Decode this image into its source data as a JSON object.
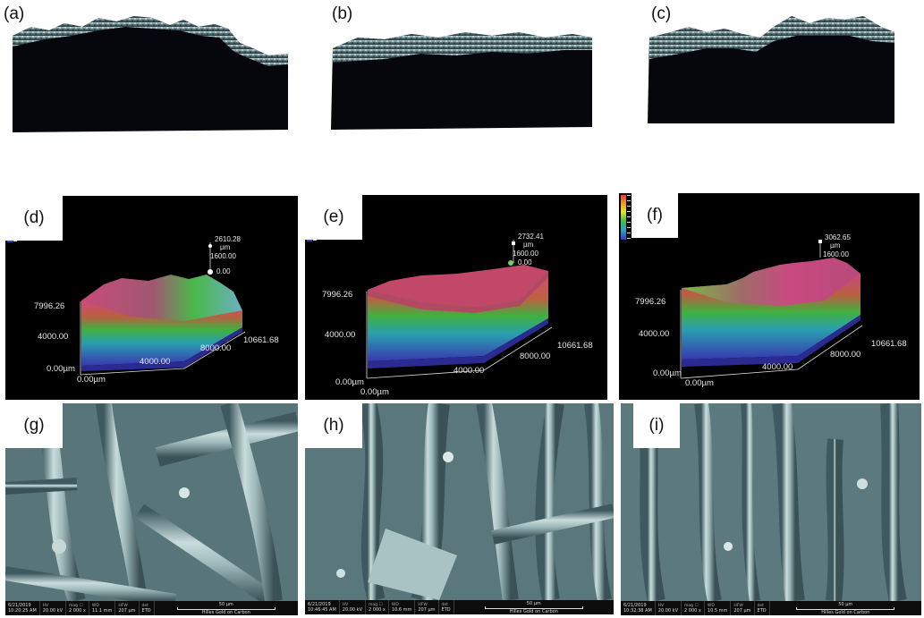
{
  "panels": {
    "a": {
      "label": "(a)"
    },
    "b": {
      "label": "(b)"
    },
    "c": {
      "label": "(c)"
    },
    "d": {
      "label": "(d)",
      "z_top": "2610.28",
      "z_unit": "µm",
      "z_mid": "1600.00",
      "z_zero": "0.00",
      "y_max": "7996.26",
      "y_mid": "4000.00",
      "origin_y": "0.00µm",
      "origin_x": "0.00µm",
      "x_mid": "4000.00",
      "x_8000": "8000.00",
      "x_max": "10661.68"
    },
    "e": {
      "label": "(e)",
      "z_top": "2732.41",
      "z_unit": "µm",
      "z_mid": "1600.00",
      "z_zero": "0.00",
      "y_max": "7996.26",
      "y_mid": "4000.00",
      "origin_y": "0.00µm",
      "origin_x": "0.00µm",
      "x_mid": "4000.00",
      "x_8000": "8000.00",
      "x_max": "10661.68"
    },
    "f": {
      "label": "(f)",
      "z_top": "3062.65",
      "z_unit": "µm",
      "z_mid": "1600.00",
      "y_max": "7996.26",
      "y_mid": "4000.00",
      "origin_y": "0.00µm",
      "origin_x": "0.00µm",
      "x_mid": "4000.00",
      "x_8000": "8000.00",
      "x_max": "10661.68"
    },
    "g": {
      "label": "(g)",
      "date": "6/21/2019",
      "time": "10:20:25 AM",
      "hv": "20.00 kV",
      "mag": "2 000 x",
      "wd": "11.1 mm",
      "hfw": "207 µm",
      "det": "ETD",
      "scale": "50 µm",
      "sample": "Hilles Gold on Carbon"
    },
    "h": {
      "label": "(h)",
      "date": "6/21/2019",
      "time": "10:46:45 AM",
      "hv": "20.00 kV",
      "mag": "2 000 x",
      "wd": "10.6 mm",
      "hfw": "207 µm",
      "det": "ETD",
      "scale": "50 µm",
      "sample": "Hilles Gold on Carbon"
    },
    "i": {
      "label": "(i)",
      "date": "6/21/2019",
      "time": "10:32:38 AM",
      "hv": "20.00 kV",
      "mag": "2 000 x",
      "wd": "10.5 mm",
      "hfw": "207 µm",
      "det": "ETD",
      "scale": "50 µm",
      "sample": "Hilles Gold on Carbon"
    }
  },
  "sem_headers": {
    "hv": "HV",
    "mag": "mag ☐",
    "wd": "WD",
    "hfw": "HFW",
    "det": "det"
  },
  "colors": {
    "specimen_body": "#05070d",
    "sem_base": "#6f8c8e",
    "profile_bg": "#000000"
  }
}
